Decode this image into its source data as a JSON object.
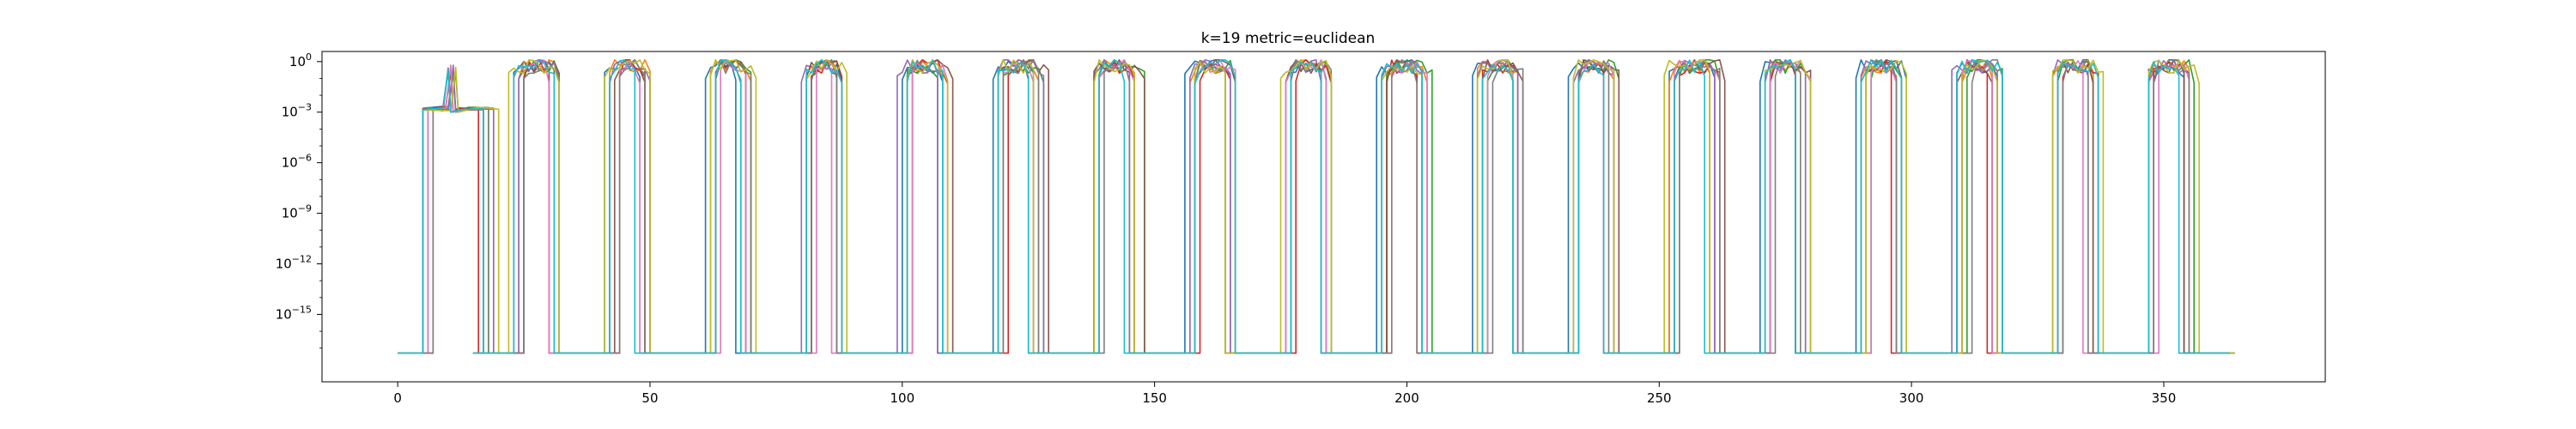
{
  "chart_data": {
    "type": "line",
    "title": "k=19 metric=euclidean",
    "xlabel": "",
    "ylabel": "",
    "xlim": [
      -15,
      382
    ],
    "ylim_log10": [
      -19.0,
      0.6
    ],
    "y_scale": "log",
    "grid": false,
    "x_ticks": [
      {
        "value": 0,
        "label": "0"
      },
      {
        "value": 50,
        "label": "50"
      },
      {
        "value": 100,
        "label": "100"
      },
      {
        "value": 150,
        "label": "150"
      },
      {
        "value": 200,
        "label": "200"
      },
      {
        "value": 250,
        "label": "250"
      },
      {
        "value": 300,
        "label": "300"
      },
      {
        "value": 350,
        "label": "350"
      }
    ],
    "y_ticks": [
      {
        "exp": 0,
        "base": "10",
        "sup": "0"
      },
      {
        "exp": -3,
        "base": "10",
        "sup": "−3"
      },
      {
        "exp": -6,
        "base": "10",
        "sup": "−6"
      },
      {
        "exp": -9,
        "base": "10",
        "sup": "−9"
      },
      {
        "exp": -12,
        "base": "10",
        "sup": "−12"
      },
      {
        "exp": -15,
        "base": "10",
        "sup": "−15"
      }
    ],
    "series_colors": [
      "#1f77b4",
      "#ff7f0e",
      "#2ca02c",
      "#d62728",
      "#9467bd",
      "#8c564b",
      "#e377c2",
      "#7f7f7f",
      "#bcbd22",
      "#17becf"
    ],
    "floor_log10": -17.3,
    "high_log10": -0.25,
    "active_windows": [
      [
        4,
        13
      ],
      [
        22,
        30
      ],
      [
        41,
        48
      ],
      [
        61,
        68
      ],
      [
        80,
        87
      ],
      [
        99,
        107
      ],
      [
        118,
        126
      ],
      [
        137,
        145
      ],
      [
        156,
        164
      ],
      [
        175,
        183
      ],
      [
        194,
        202
      ],
      [
        213,
        221
      ],
      [
        232,
        240
      ],
      [
        251,
        260
      ],
      [
        270,
        278
      ],
      [
        289,
        297
      ],
      [
        308,
        316
      ],
      [
        327,
        335
      ],
      [
        346,
        354
      ]
    ],
    "start_window_level_log10": -2.8,
    "start_window_peak_log10": -0.2,
    "x_end": 362
  }
}
